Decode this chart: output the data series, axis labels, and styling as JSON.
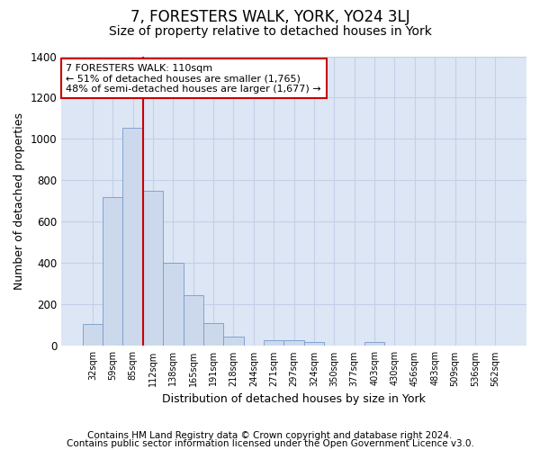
{
  "title": "7, FORESTERS WALK, YORK, YO24 3LJ",
  "subtitle": "Size of property relative to detached houses in York",
  "xlabel": "Distribution of detached houses by size in York",
  "ylabel": "Number of detached properties",
  "categories": [
    "32sqm",
    "59sqm",
    "85sqm",
    "112sqm",
    "138sqm",
    "165sqm",
    "191sqm",
    "218sqm",
    "244sqm",
    "271sqm",
    "297sqm",
    "324sqm",
    "350sqm",
    "377sqm",
    "403sqm",
    "430sqm",
    "456sqm",
    "483sqm",
    "509sqm",
    "536sqm",
    "562sqm"
  ],
  "values": [
    105,
    720,
    1055,
    750,
    400,
    245,
    110,
    47,
    0,
    27,
    27,
    20,
    0,
    0,
    18,
    0,
    0,
    0,
    0,
    0,
    0
  ],
  "bar_color": "#ccd9ec",
  "bar_edge_color": "#7799cc",
  "grid_color": "#c5cfe8",
  "bg_color": "#dce6f5",
  "vline_color": "#cc0000",
  "vline_x_index": 3,
  "annotation_text": "7 FORESTERS WALK: 110sqm\n← 51% of detached houses are smaller (1,765)\n48% of semi-detached houses are larger (1,677) →",
  "annotation_box_color": "#ffffff",
  "annotation_box_edge": "#cc0000",
  "ylim": [
    0,
    1400
  ],
  "yticks": [
    0,
    200,
    400,
    600,
    800,
    1000,
    1200,
    1400
  ],
  "footer1": "Contains HM Land Registry data © Crown copyright and database right 2024.",
  "footer2": "Contains public sector information licensed under the Open Government Licence v3.0.",
  "title_fontsize": 12,
  "subtitle_fontsize": 10,
  "footer_fontsize": 7.5
}
